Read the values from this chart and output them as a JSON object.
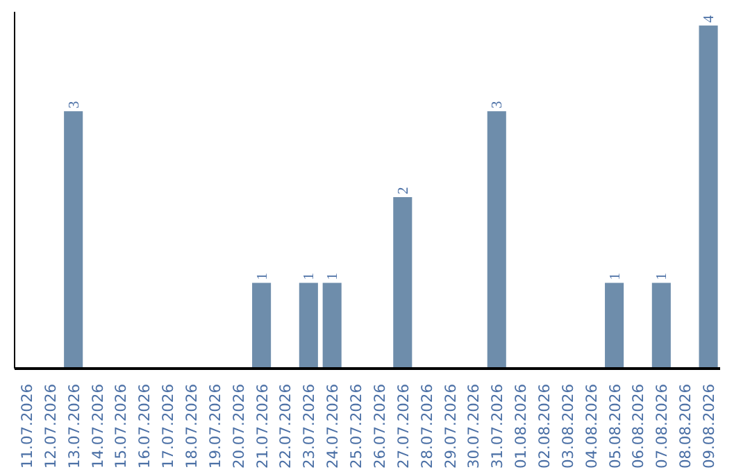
{
  "chart_data": {
    "type": "bar",
    "categories": [
      "11.07.2026",
      "12.07.2026",
      "13.07.2026",
      "14.07.2026",
      "15.07.2026",
      "16.07.2026",
      "17.07.2026",
      "18.07.2026",
      "19.07.2026",
      "20.07.2026",
      "21.07.2026",
      "22.07.2026",
      "23.07.2026",
      "24.07.2026",
      "25.07.2026",
      "26.07.2026",
      "27.07.2026",
      "28.07.2026",
      "29.07.2026",
      "30.07.2026",
      "31.07.2026",
      "01.08.2026",
      "02.08.2026",
      "03.08.2026",
      "04.08.2026",
      "05.08.2026",
      "06.08.2026",
      "07.08.2026",
      "08.08.2026",
      "09.08.2026"
    ],
    "values": [
      0,
      0,
      3,
      0,
      0,
      0,
      0,
      0,
      0,
      0,
      1,
      0,
      1,
      1,
      0,
      0,
      2,
      0,
      0,
      0,
      3,
      0,
      0,
      0,
      0,
      1,
      0,
      1,
      0,
      4
    ],
    "value_labels": [
      null,
      null,
      "3",
      null,
      null,
      null,
      null,
      null,
      null,
      null,
      "1",
      null,
      "1",
      "1",
      null,
      null,
      "2",
      null,
      null,
      null,
      "3",
      null,
      null,
      null,
      null,
      "1",
      null,
      "1",
      null,
      "4"
    ],
    "color": "#6e8dab",
    "grid": false,
    "tick_labels": "x"
  }
}
